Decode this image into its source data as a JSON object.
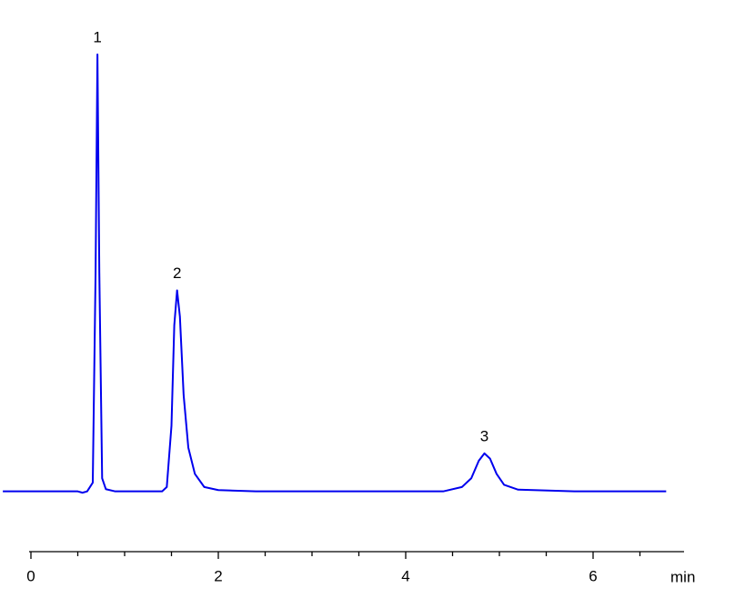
{
  "chart_data": {
    "type": "line",
    "x_label": "min",
    "x": [
      -0.3,
      0.5,
      0.55,
      0.6,
      0.66,
      0.69,
      0.71,
      0.73,
      0.76,
      0.8,
      0.9,
      1.4,
      1.45,
      1.5,
      1.53,
      1.56,
      1.59,
      1.63,
      1.68,
      1.75,
      1.85,
      2.0,
      2.4,
      4.4,
      4.6,
      4.7,
      4.78,
      4.84,
      4.9,
      4.97,
      5.05,
      5.2,
      5.8,
      6.78
    ],
    "series": [
      {
        "color": "#0000ee",
        "values": [
          0,
          0,
          -0.3,
          0,
          2,
          50,
          100,
          50,
          3,
          0.5,
          0,
          0,
          1,
          15,
          38,
          46,
          40,
          22,
          10,
          4,
          1,
          0.3,
          0,
          0,
          1,
          3,
          7,
          8.7,
          7.5,
          4,
          1.5,
          0.4,
          0,
          0
        ]
      }
    ],
    "annotations": [
      {
        "text": "1",
        "x": 0.71,
        "y": 100
      },
      {
        "text": "2",
        "x": 1.56,
        "y": 46
      },
      {
        "text": "3",
        "x": 4.84,
        "y": 8.7
      }
    ],
    "xlim": [
      0,
      7
    ],
    "ylim": [
      -14,
      106
    ],
    "xticks": [
      0,
      2,
      4,
      6
    ],
    "xminorticks": [
      0.5,
      1,
      1.5,
      2.5,
      3,
      3.5,
      4.5,
      5,
      5.5,
      6.5
    ]
  }
}
